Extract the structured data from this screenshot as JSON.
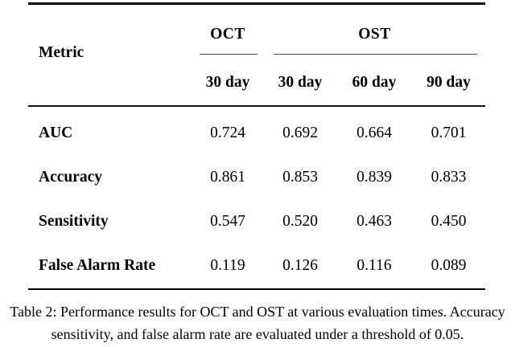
{
  "table": {
    "metric_header": "Metric",
    "group_headers": [
      {
        "label": "OCT",
        "span": 1
      },
      {
        "label": "OST",
        "span": 3
      }
    ],
    "subheaders": [
      "30 day",
      "30 day",
      "60 day",
      "90 day"
    ],
    "rows": [
      {
        "label": "AUC",
        "values": [
          "0.724",
          "0.692",
          "0.664",
          "0.701"
        ]
      },
      {
        "label": "Accuracy",
        "values": [
          "0.861",
          "0.853",
          "0.839",
          "0.833"
        ]
      },
      {
        "label": "Sensitivity",
        "values": [
          "0.547",
          "0.520",
          "0.463",
          "0.450"
        ]
      },
      {
        "label": "False Alarm Rate",
        "values": [
          "0.119",
          "0.126",
          "0.116",
          "0.089"
        ]
      }
    ]
  },
  "caption": {
    "line1": "Table 2: Performance results for OCT and OST at various evaluation times. Accuracy",
    "line2": "sensitivity, and false alarm rate are evaluated under a threshold of 0.05."
  },
  "colors": {
    "text": "#000000",
    "rule": "#000000",
    "cmidrule": "#4a4a4a",
    "background": "#ffffff"
  }
}
